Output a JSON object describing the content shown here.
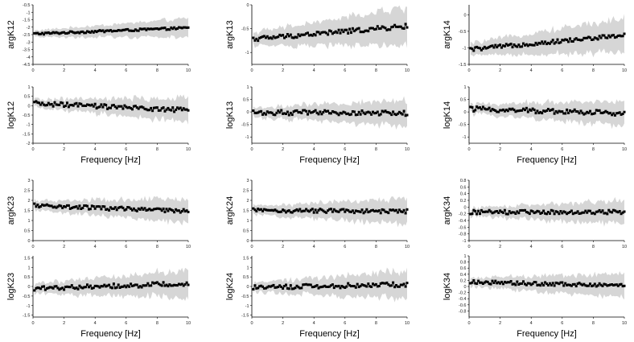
{
  "chart_data": [
    {
      "type": "line",
      "ylabel": "argK12",
      "xlabel": "",
      "ylim": [
        -4.5,
        -0.5
      ],
      "yticks": [
        "-0.5",
        "-1",
        "-1.5",
        "-2",
        "-2.5",
        "-3",
        "-3.5",
        "-4",
        "-4.5"
      ],
      "xticks": [
        "0",
        "2",
        "4",
        "6",
        "8",
        "10"
      ],
      "xlim": [
        0,
        10
      ],
      "x_step": 0.1,
      "start": -2.45,
      "end": -2.05,
      "band": 0.35,
      "noise": 0.07,
      "band_noise": 0.2
    },
    {
      "type": "line",
      "ylabel": "argK13",
      "xlabel": "",
      "ylim": [
        -1.25,
        0
      ],
      "yticks": [
        "0",
        "-0.5",
        "-1"
      ],
      "xticks": [
        "0",
        "2",
        "4",
        "6",
        "8",
        "10"
      ],
      "xlim": [
        0,
        10
      ],
      "x_step": 0.1,
      "start": -0.72,
      "end": -0.45,
      "band": 0.22,
      "noise": 0.05,
      "band_noise": 0.12
    },
    {
      "type": "line",
      "ylabel": "argK14",
      "xlabel": "",
      "ylim": [
        -1.5,
        0.3
      ],
      "yticks": [
        "0",
        "-0.5",
        "-1",
        "-1.5"
      ],
      "xticks": [
        "0",
        "2",
        "4",
        "6",
        "8",
        "10"
      ],
      "xlim": [
        0,
        10
      ],
      "x_step": 0.1,
      "start": -1.05,
      "end": -0.62,
      "band": 0.3,
      "noise": 0.06,
      "band_noise": 0.15
    },
    {
      "type": "line",
      "ylabel": "logK12",
      "xlabel": "Frequency [Hz]",
      "ylim": [
        -2,
        1
      ],
      "yticks": [
        "1",
        "0.5",
        "0",
        "-0.5",
        "-1",
        "-1.5",
        "-2"
      ],
      "xticks": [
        "0",
        "2",
        "4",
        "6",
        "8",
        "10"
      ],
      "xlim": [
        0,
        10
      ],
      "x_step": 0.1,
      "start": 0.12,
      "end": -0.25,
      "band": 0.35,
      "noise": 0.12,
      "band_noise": 0.2
    },
    {
      "type": "line",
      "ylabel": "logK13",
      "xlabel": "Frequency [Hz]",
      "ylim": [
        -1.25,
        1
      ],
      "yticks": [
        "1",
        "0.5",
        "0",
        "-0.5",
        "-1"
      ],
      "xticks": [
        "0",
        "2",
        "4",
        "6",
        "8",
        "10"
      ],
      "xlim": [
        0,
        10
      ],
      "x_step": 0.1,
      "start": -0.02,
      "end": -0.05,
      "band": 0.3,
      "noise": 0.1,
      "band_noise": 0.15
    },
    {
      "type": "line",
      "ylabel": "logK14",
      "xlabel": "Frequency [Hz]",
      "ylim": [
        -1.25,
        1
      ],
      "yticks": [
        "1",
        "0.5",
        "0",
        "-0.5",
        "-1"
      ],
      "xticks": [
        "0",
        "2",
        "4",
        "6",
        "8",
        "10"
      ],
      "xlim": [
        0,
        10
      ],
      "x_step": 0.1,
      "start": 0.12,
      "end": -0.05,
      "band": 0.3,
      "noise": 0.1,
      "band_noise": 0.15
    },
    {
      "type": "line",
      "ylabel": "argK23",
      "xlabel": "",
      "ylim": [
        0,
        3
      ],
      "yticks": [
        "3",
        "2.5",
        "2",
        "1.5",
        "1",
        "0.5",
        "0"
      ],
      "xticks": [
        "0",
        "2",
        "4",
        "6",
        "8",
        "10"
      ],
      "xlim": [
        0,
        10
      ],
      "x_step": 0.1,
      "start": 1.75,
      "end": 1.45,
      "band": 0.35,
      "noise": 0.1,
      "band_noise": 0.2
    },
    {
      "type": "line",
      "ylabel": "argK24",
      "xlabel": "",
      "ylim": [
        0,
        3
      ],
      "yticks": [
        "3",
        "2.5",
        "2",
        "1.5",
        "1",
        "0.5",
        "0"
      ],
      "xticks": [
        "0",
        "2",
        "4",
        "6",
        "8",
        "10"
      ],
      "xlim": [
        0,
        10
      ],
      "x_step": 0.1,
      "start": 1.5,
      "end": 1.45,
      "band": 0.35,
      "noise": 0.1,
      "band_noise": 0.2
    },
    {
      "type": "line",
      "ylabel": "argK34",
      "xlabel": "",
      "ylim": [
        -1,
        0.8
      ],
      "yticks": [
        "0.8",
        "0.6",
        "0.4",
        "0.2",
        "0",
        "-0.2",
        "-0.4",
        "-0.6",
        "-0.8",
        "-1"
      ],
      "xticks": [
        "0",
        "2",
        "4",
        "6",
        "8",
        "10"
      ],
      "xlim": [
        0,
        10
      ],
      "x_step": 0.1,
      "start": -0.15,
      "end": -0.15,
      "band": 0.2,
      "noise": 0.06,
      "band_noise": 0.12
    },
    {
      "type": "line",
      "ylabel": "logK23",
      "xlabel": "Frequency [Hz]",
      "ylim": [
        -1.6,
        1.6
      ],
      "yticks": [
        "1.5",
        "1",
        "0.5",
        "0",
        "-0.5",
        "-1",
        "-1.5"
      ],
      "xticks": [
        "0",
        "2",
        "4",
        "6",
        "8",
        "10"
      ],
      "xlim": [
        0,
        10
      ],
      "x_step": 0.1,
      "start": -0.1,
      "end": 0.15,
      "band": 0.4,
      "noise": 0.12,
      "band_noise": 0.25
    },
    {
      "type": "line",
      "ylabel": "logK24",
      "xlabel": "Frequency [Hz]",
      "ylim": [
        -1.6,
        1.6
      ],
      "yticks": [
        "1.5",
        "1",
        "0.5",
        "0",
        "-0.5",
        "-1",
        "-1.5"
      ],
      "xticks": [
        "0",
        "2",
        "4",
        "6",
        "8",
        "10"
      ],
      "xlim": [
        0,
        10
      ],
      "x_step": 0.1,
      "start": -0.05,
      "end": 0.1,
      "band": 0.4,
      "noise": 0.12,
      "band_noise": 0.25
    },
    {
      "type": "line",
      "ylabel": "logK34",
      "xlabel": "Frequency [Hz]",
      "ylim": [
        -1,
        1
      ],
      "yticks": [
        "1",
        "0.8",
        "0.6",
        "0.4",
        "0.2",
        "0",
        "-0.2",
        "-0.4",
        "-0.6",
        "-0.8"
      ],
      "xticks": [
        "0",
        "2",
        "4",
        "6",
        "8",
        "10"
      ],
      "xlim": [
        0,
        10
      ],
      "x_step": 0.1,
      "start": 0.15,
      "end": 0.02,
      "band": 0.22,
      "noise": 0.06,
      "band_noise": 0.12
    }
  ]
}
